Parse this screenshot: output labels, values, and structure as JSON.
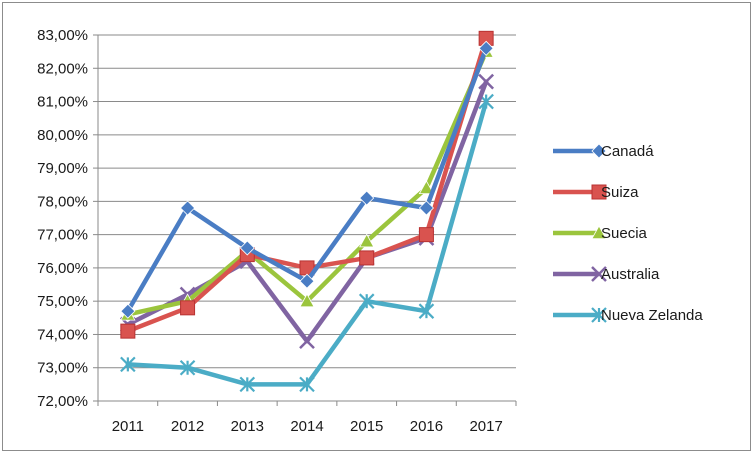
{
  "chart_data": {
    "type": "line",
    "title": "",
    "xlabel": "",
    "ylabel": "",
    "categories": [
      "2011",
      "2012",
      "2013",
      "2014",
      "2015",
      "2016",
      "2017"
    ],
    "ylim": [
      72,
      83
    ],
    "ytick_step": 1,
    "ytick_labels": [
      "72,00%",
      "73,00%",
      "74,00%",
      "75,00%",
      "76,00%",
      "77,00%",
      "78,00%",
      "79,00%",
      "80,00%",
      "81,00%",
      "82,00%",
      "83,00%"
    ],
    "grid": "horizontal",
    "legend_position": "right",
    "series": [
      {
        "name": "Canadá",
        "values": [
          74.7,
          77.8,
          76.6,
          75.6,
          78.1,
          77.8,
          82.6
        ],
        "color": "#4a7dc4",
        "marker": "diamond"
      },
      {
        "name": "Suiza",
        "values": [
          74.1,
          74.8,
          76.4,
          76.0,
          76.3,
          77.0,
          82.9
        ],
        "color": "#d9534f",
        "marker": "square"
      },
      {
        "name": "Suecia",
        "values": [
          74.6,
          75.0,
          76.5,
          75.0,
          76.8,
          78.4,
          82.5
        ],
        "color": "#9bc53d",
        "marker": "triangle"
      },
      {
        "name": "Australia",
        "values": [
          74.3,
          75.2,
          76.2,
          73.8,
          76.3,
          76.9,
          81.6
        ],
        "color": "#8064a2",
        "marker": "x"
      },
      {
        "name": "Nueva Zelanda",
        "values": [
          73.1,
          73.0,
          72.5,
          72.5,
          75.0,
          74.7,
          81.0
        ],
        "color": "#4bacc6",
        "marker": "star"
      }
    ]
  }
}
